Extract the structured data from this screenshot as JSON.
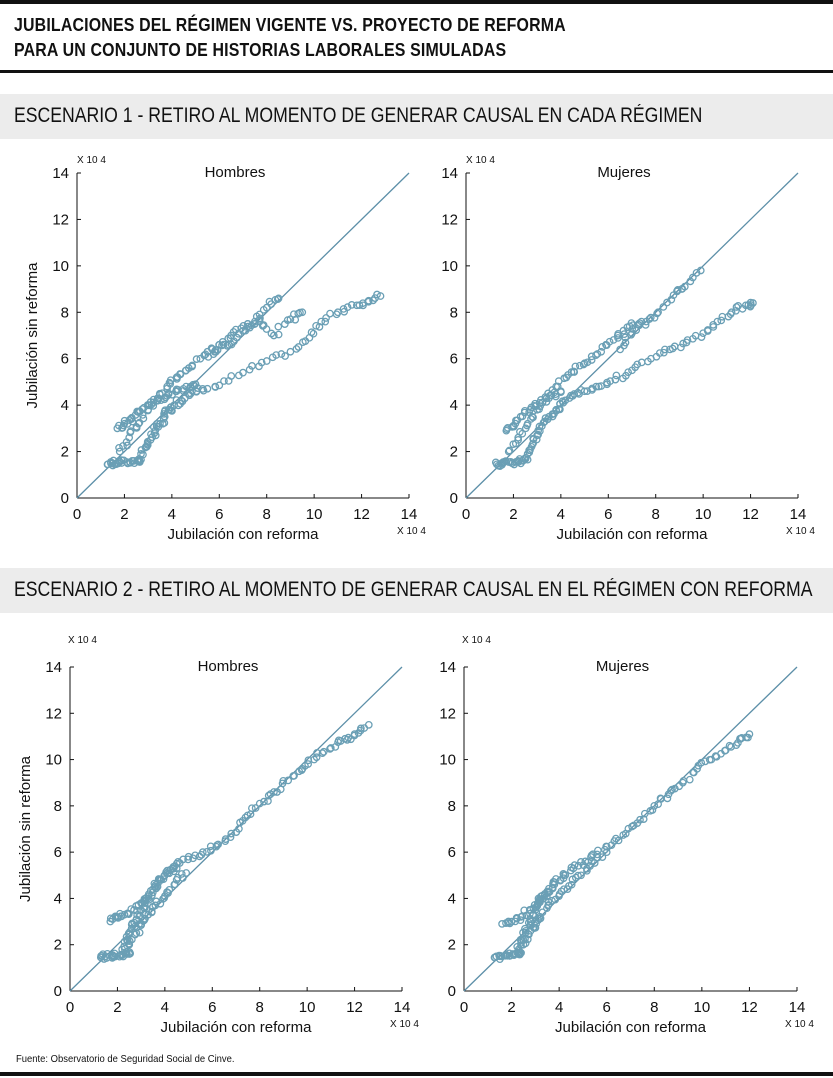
{
  "title_line1": "JUBILACIONES DEL RÉGIMEN VIGENTE VS. PROYECTO DE REFORMA",
  "title_line2": "PARA UN CONJUNTO DE HISTORIAS LABORALES SIMULADAS",
  "scenario1": "ESCENARIO 1 - RETIRO AL MOMENTO DE GENERAR CAUSAL EN CADA RÉGIMEN",
  "scenario2": "ESCENARIO 2 - RETIRO AL MOMENTO DE GENERAR CAUSAL EN EL RÉGIMEN CON REFORMA",
  "source": "Fuente: Observatorio de Seguridad Social de Cinve.",
  "colors": {
    "marker": "#6a9fb5",
    "diagonal": "#5c8fa8",
    "axis": "#111111"
  },
  "chart_data": [
    {
      "type": "scatter",
      "scenario": 1,
      "title": "Hombres",
      "xlabel": "Jubilación con reforma",
      "ylabel": "Jubilación sin reforma",
      "xscale_label": "X 10 4",
      "yscale_label": "X 10 4",
      "xlim": [
        0,
        14
      ],
      "ylim": [
        0,
        14
      ],
      "xticks": [
        "0",
        "2",
        "4",
        "6",
        "8",
        "10",
        "12",
        "14"
      ],
      "yticks": [
        "0",
        "2",
        "4",
        "6",
        "8",
        "10",
        "12",
        "14"
      ],
      "reference_line": "y = x",
      "marker": "open-circle",
      "point_groups": [
        {
          "points": [
            [
              1.3,
              1.45
            ],
            [
              1.5,
              1.5
            ],
            [
              1.8,
              1.55
            ],
            [
              2.1,
              1.55
            ],
            [
              2.4,
              1.6
            ],
            [
              2.6,
              1.6
            ],
            [
              2.7,
              1.65
            ]
          ]
        },
        {
          "points": [
            [
              2.7,
              1.9
            ],
            [
              2.9,
              2.2
            ],
            [
              3.1,
              2.5
            ],
            [
              3.3,
              2.9
            ],
            [
              3.5,
              3.2
            ],
            [
              3.7,
              3.5
            ],
            [
              3.9,
              3.8
            ],
            [
              4.1,
              4.0
            ],
            [
              4.4,
              4.2
            ],
            [
              4.8,
              4.5
            ],
            [
              5.3,
              4.7
            ],
            [
              6.0,
              4.85
            ],
            [
              7.0,
              5.4
            ],
            [
              8.0,
              5.9
            ],
            [
              9.0,
              6.3
            ],
            [
              9.8,
              6.9
            ],
            [
              10.3,
              7.6
            ],
            [
              11.0,
              8.0
            ],
            [
              11.8,
              8.3
            ],
            [
              12.3,
              8.5
            ],
            [
              12.8,
              8.7
            ]
          ]
        },
        {
          "points": [
            [
              1.8,
              2.0
            ],
            [
              2.2,
              2.6
            ],
            [
              2.6,
              3.2
            ],
            [
              3.0,
              3.8
            ],
            [
              3.4,
              4.3
            ],
            [
              3.8,
              4.8
            ],
            [
              4.2,
              5.2
            ],
            [
              4.6,
              5.5
            ],
            [
              5.2,
              6.0
            ],
            [
              5.8,
              6.3
            ],
            [
              6.4,
              6.6
            ],
            [
              7.0,
              7.2
            ],
            [
              7.5,
              7.6
            ],
            [
              8.0,
              8.2
            ],
            [
              8.5,
              8.6
            ]
          ]
        },
        {
          "points": [
            [
              1.7,
              3.0
            ],
            [
              2.0,
              3.2
            ],
            [
              2.3,
              3.4
            ],
            [
              2.6,
              3.7
            ],
            [
              3.0,
              4.0
            ],
            [
              3.4,
              4.2
            ],
            [
              3.8,
              4.4
            ],
            [
              4.2,
              4.6
            ],
            [
              4.6,
              4.8
            ],
            [
              5.0,
              4.9
            ]
          ]
        },
        {
          "points": [
            [
              5.5,
              6.3
            ],
            [
              6.0,
              6.6
            ],
            [
              6.5,
              7.0
            ],
            [
              7.2,
              7.5
            ],
            [
              7.7,
              7.6
            ],
            [
              8.3,
              7.0
            ],
            [
              9.0,
              7.7
            ],
            [
              9.5,
              8.0
            ]
          ]
        }
      ]
    },
    {
      "type": "scatter",
      "scenario": 1,
      "title": "Mujeres",
      "xlabel": "Jubilación con reforma",
      "ylabel": "",
      "xscale_label": "X 10 4",
      "yscale_label": "X 10 4",
      "xlim": [
        0,
        14
      ],
      "ylim": [
        0,
        14
      ],
      "xticks": [
        "0",
        "2",
        "4",
        "6",
        "8",
        "10",
        "12",
        "14"
      ],
      "yticks": [
        "0",
        "2",
        "4",
        "6",
        "8",
        "10",
        "12",
        "14"
      ],
      "reference_line": "y = x",
      "marker": "open-circle",
      "point_groups": [
        {
          "points": [
            [
              1.3,
              1.45
            ],
            [
              1.5,
              1.5
            ],
            [
              1.8,
              1.55
            ],
            [
              2.1,
              1.55
            ],
            [
              2.4,
              1.6
            ],
            [
              2.6,
              1.65
            ]
          ]
        },
        {
          "points": [
            [
              2.6,
              1.9
            ],
            [
              2.8,
              2.3
            ],
            [
              3.0,
              2.7
            ],
            [
              3.2,
              3.1
            ],
            [
              3.5,
              3.5
            ],
            [
              3.8,
              3.8
            ],
            [
              4.1,
              4.1
            ],
            [
              4.5,
              4.4
            ],
            [
              5.0,
              4.6
            ],
            [
              5.6,
              4.8
            ],
            [
              6.3,
              5.1
            ],
            [
              7.0,
              5.5
            ],
            [
              7.8,
              6.0
            ],
            [
              8.6,
              6.4
            ],
            [
              9.3,
              6.7
            ],
            [
              10.0,
              7.1
            ],
            [
              10.6,
              7.6
            ],
            [
              11.2,
              8.0
            ],
            [
              11.8,
              8.3
            ],
            [
              12.1,
              8.4
            ]
          ]
        },
        {
          "points": [
            [
              1.8,
              2.0
            ],
            [
              2.2,
              2.6
            ],
            [
              2.6,
              3.2
            ],
            [
              3.0,
              3.8
            ],
            [
              3.4,
              4.3
            ],
            [
              3.8,
              4.8
            ],
            [
              4.3,
              5.3
            ],
            [
              4.8,
              5.7
            ],
            [
              5.3,
              6.1
            ],
            [
              5.9,
              6.6
            ],
            [
              6.4,
              7.0
            ],
            [
              6.9,
              7.4
            ],
            [
              7.4,
              7.6
            ]
          ]
        },
        {
          "points": [
            [
              1.7,
              2.9
            ],
            [
              2.0,
              3.1
            ],
            [
              2.3,
              3.5
            ],
            [
              2.7,
              3.8
            ],
            [
              3.1,
              4.1
            ],
            [
              3.5,
              4.3
            ],
            [
              4.0,
              4.6
            ]
          ]
        },
        {
          "points": [
            [
              6.5,
              6.4
            ],
            [
              7.0,
              7.1
            ],
            [
              7.6,
              7.6
            ],
            [
              8.1,
              8.0
            ],
            [
              8.9,
              8.9
            ],
            [
              9.1,
              9.0
            ],
            [
              9.9,
              9.8
            ]
          ]
        }
      ]
    },
    {
      "type": "scatter",
      "scenario": 2,
      "title": "Hombres",
      "xlabel": "Jubilación con reforma",
      "ylabel": "Jubilación sin reforma",
      "xscale_label": "X 10 4",
      "yscale_label": "X 10 4",
      "xlim": [
        0,
        14
      ],
      "ylim": [
        0,
        14
      ],
      "xticks": [
        "0",
        "2",
        "4",
        "6",
        "8",
        "10",
        "12",
        "14"
      ],
      "yticks": [
        "0",
        "2",
        "4",
        "6",
        "8",
        "10",
        "12",
        "14"
      ],
      "reference_line": "y = x",
      "marker": "open-circle",
      "point_groups": [
        {
          "points": [
            [
              1.3,
              1.45
            ],
            [
              1.5,
              1.5
            ],
            [
              1.8,
              1.55
            ],
            [
              2.1,
              1.55
            ],
            [
              2.4,
              1.6
            ],
            [
              2.5,
              1.6
            ]
          ]
        },
        {
          "points": [
            [
              2.2,
              1.8
            ],
            [
              2.4,
              2.2
            ],
            [
              2.6,
              2.7
            ],
            [
              2.8,
              3.1
            ],
            [
              3.0,
              3.5
            ],
            [
              3.2,
              3.9
            ],
            [
              3.5,
              4.4
            ],
            [
              3.8,
              4.8
            ],
            [
              4.1,
              5.2
            ],
            [
              4.5,
              5.5
            ],
            [
              5.0,
              5.8
            ],
            [
              5.6,
              6.0
            ],
            [
              6.2,
              6.3
            ],
            [
              6.8,
              6.8
            ],
            [
              7.4,
              7.5
            ],
            [
              8.0,
              8.1
            ],
            [
              8.6,
              8.6
            ],
            [
              9.2,
              9.1
            ],
            [
              9.8,
              9.6
            ],
            [
              10.4,
              10.1
            ],
            [
              11.0,
              10.5
            ],
            [
              11.6,
              10.9
            ],
            [
              12.0,
              11.1
            ],
            [
              12.6,
              11.5
            ]
          ]
        },
        {
          "points": [
            [
              1.7,
              3.0
            ],
            [
              2.0,
              3.2
            ],
            [
              2.3,
              3.3
            ],
            [
              2.7,
              3.5
            ],
            [
              3.0,
              3.8
            ],
            [
              3.3,
              4.0
            ],
            [
              3.6,
              4.5
            ],
            [
              4.0,
              5.0
            ],
            [
              4.5,
              5.3
            ]
          ]
        },
        {
          "points": [
            [
              2.5,
              2.0
            ],
            [
              2.8,
              2.5
            ],
            [
              3.0,
              2.9
            ],
            [
              3.3,
              3.3
            ],
            [
              3.6,
              3.7
            ],
            [
              4.0,
              4.1
            ],
            [
              4.4,
              4.6
            ],
            [
              4.9,
              5.1
            ]
          ]
        }
      ]
    },
    {
      "type": "scatter",
      "scenario": 2,
      "title": "Mujeres",
      "xlabel": "Jubilación con reforma",
      "ylabel": "",
      "xscale_label": "X 10 4",
      "yscale_label": "X 10 4",
      "xlim": [
        0,
        14
      ],
      "ylim": [
        0,
        14
      ],
      "xticks": [
        "0",
        "2",
        "4",
        "6",
        "8",
        "10",
        "12",
        "14"
      ],
      "yticks": [
        "0",
        "2",
        "4",
        "6",
        "8",
        "10",
        "12",
        "14"
      ],
      "reference_line": "y = x",
      "marker": "open-circle",
      "point_groups": [
        {
          "points": [
            [
              1.3,
              1.45
            ],
            [
              1.5,
              1.5
            ],
            [
              1.8,
              1.55
            ],
            [
              2.1,
              1.55
            ],
            [
              2.3,
              1.6
            ],
            [
              2.4,
              1.65
            ]
          ]
        },
        {
          "points": [
            [
              2.3,
              1.8
            ],
            [
              2.5,
              2.2
            ],
            [
              2.6,
              2.6
            ],
            [
              2.8,
              3.0
            ],
            [
              3.0,
              3.5
            ],
            [
              3.2,
              3.9
            ],
            [
              3.5,
              4.3
            ],
            [
              3.8,
              4.7
            ],
            [
              4.2,
              5.0
            ],
            [
              4.6,
              5.3
            ],
            [
              5.1,
              5.6
            ],
            [
              5.6,
              5.9
            ],
            [
              6.2,
              6.3
            ],
            [
              6.8,
              6.8
            ],
            [
              7.4,
              7.4
            ],
            [
              8.0,
              8.0
            ],
            [
              8.6,
              8.5
            ],
            [
              9.2,
              9.0
            ],
            [
              9.8,
              9.6
            ],
            [
              10.4,
              10.0
            ],
            [
              11.0,
              10.4
            ],
            [
              11.6,
              10.9
            ],
            [
              12.0,
              11.1
            ]
          ]
        },
        {
          "points": [
            [
              1.6,
              2.9
            ],
            [
              2.0,
              3.0
            ],
            [
              2.4,
              3.2
            ],
            [
              2.8,
              3.5
            ],
            [
              3.1,
              3.8
            ],
            [
              3.4,
              4.2
            ],
            [
              3.8,
              4.6
            ]
          ]
        },
        {
          "points": [
            [
              2.5,
              2.0
            ],
            [
              2.8,
              2.6
            ],
            [
              3.0,
              3.0
            ],
            [
              3.3,
              3.4
            ],
            [
              3.7,
              3.9
            ],
            [
              4.2,
              4.4
            ],
            [
              4.7,
              4.9
            ],
            [
              5.3,
              5.4
            ],
            [
              6.0,
              6.0
            ]
          ]
        }
      ]
    }
  ]
}
